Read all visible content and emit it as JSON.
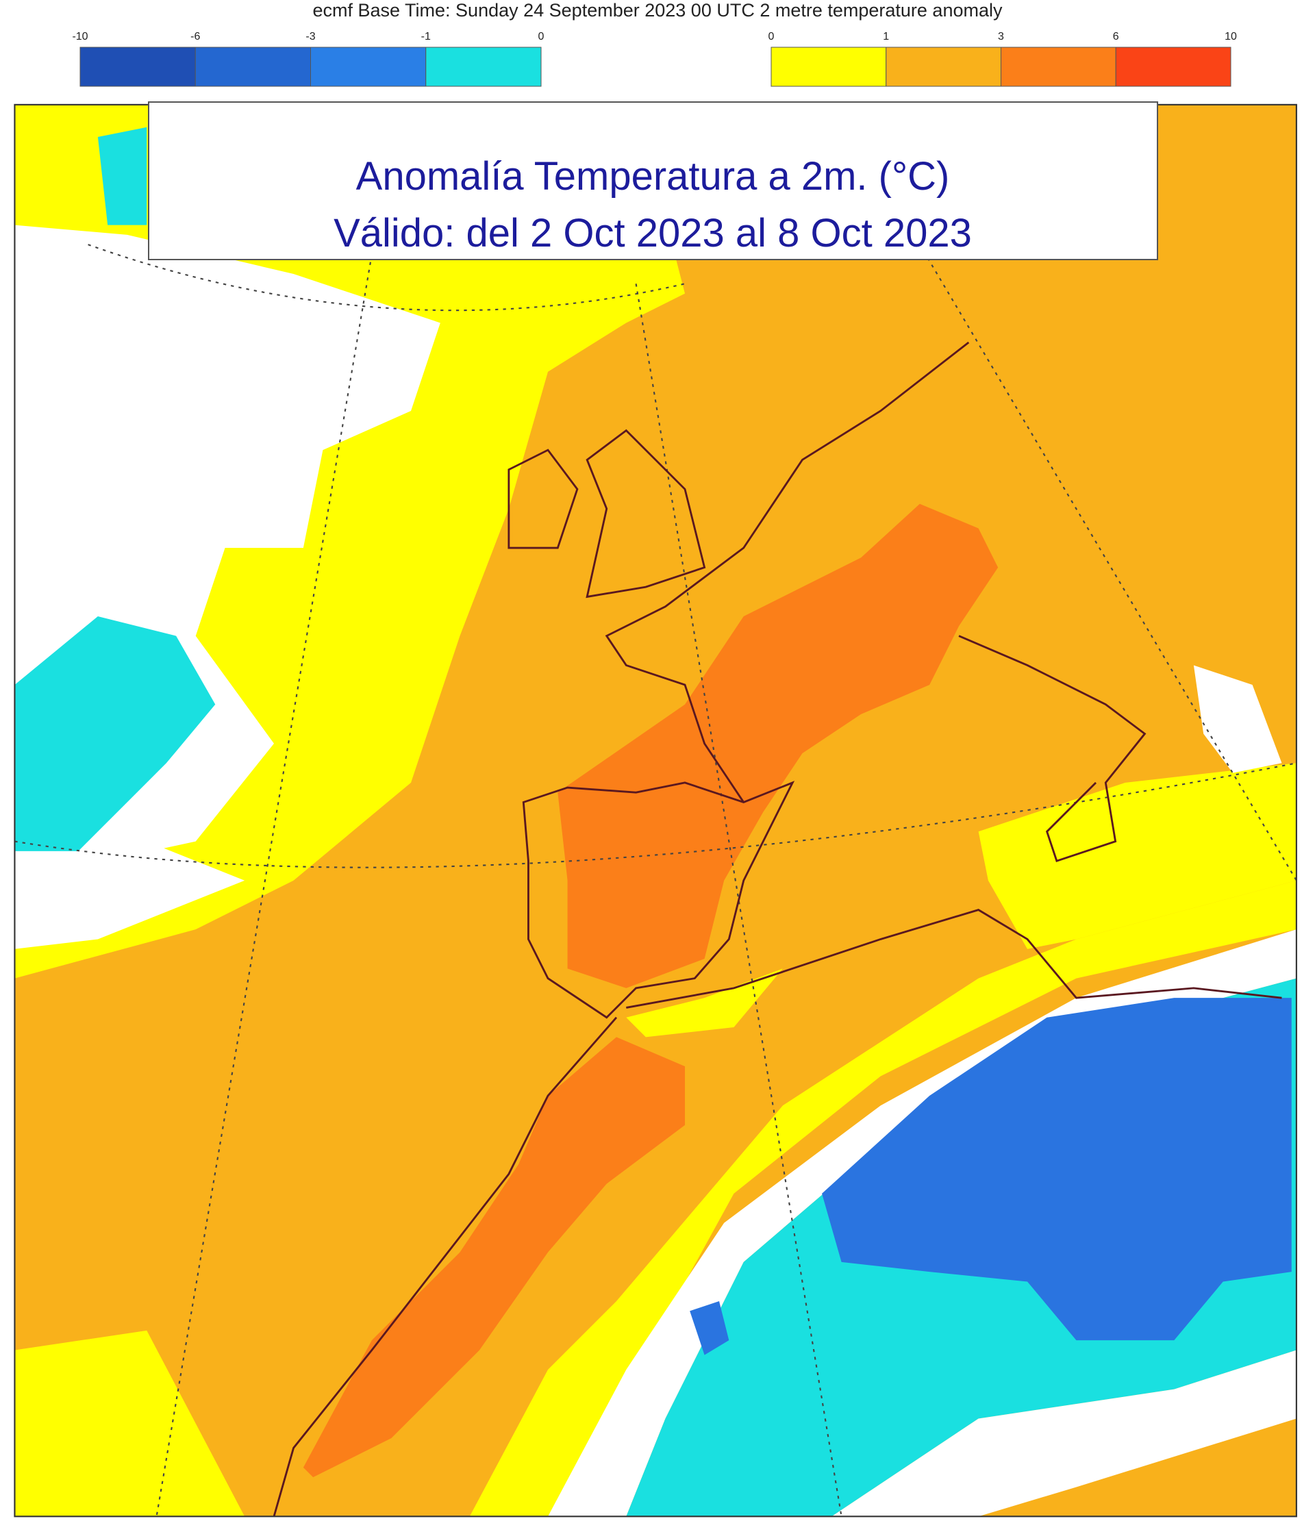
{
  "header": {
    "text": "ecmf  Base Time: Sunday 24 September 2023 00 UTC 2 metre temperature anomaly"
  },
  "legend": {
    "negative": {
      "ticks": [
        -10,
        -6,
        -3,
        -1,
        0
      ],
      "colors": [
        "#1f4fb4",
        "#2467d0",
        "#2a7fe6",
        "#1ae0e0"
      ]
    },
    "positive": {
      "ticks": [
        0,
        1,
        3,
        6,
        10
      ],
      "colors": [
        "#ffff00",
        "#f9b11b",
        "#fb7f19",
        "#fa4416"
      ]
    }
  },
  "title": {
    "line1": "Anomalía Temperatura a 2m. (°C)",
    "line2": "Válido: del 2 Oct 2023 al 8 Oct 2023"
  }
}
